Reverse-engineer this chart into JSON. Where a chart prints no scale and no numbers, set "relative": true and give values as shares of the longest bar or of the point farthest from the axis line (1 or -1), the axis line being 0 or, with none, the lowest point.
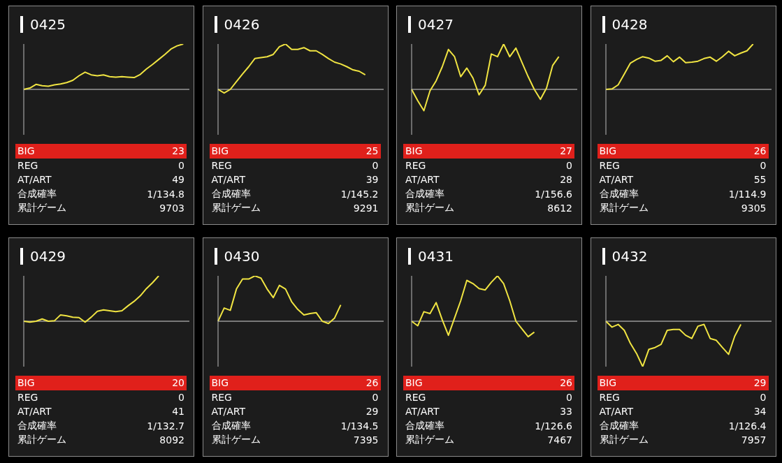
{
  "chart_data": [
    {
      "type": "line",
      "title": "0425",
      "relative": true,
      "tick_labels": false,
      "color": "#f0e442",
      "categories": [
        null,
        null,
        null,
        null,
        null,
        null,
        null,
        null,
        null,
        null,
        null,
        null,
        null,
        null,
        null,
        null,
        null,
        null,
        null,
        null,
        null,
        null,
        null,
        null,
        null,
        null,
        null,
        null
      ],
      "values": [
        0,
        0.03,
        0.11,
        0.08,
        0.07,
        0.1,
        0.12,
        0.15,
        0.2,
        0.3,
        0.38,
        0.32,
        0.3,
        0.32,
        0.28,
        0.27,
        0.28,
        0.27,
        0.26,
        0.33,
        0.45,
        0.55,
        0.66,
        0.77,
        0.89,
        0.96,
        1,
        null
      ],
      "annotations": [
        "BIG",
        "23",
        "REG",
        "0",
        "AT/ART",
        "49",
        "合成確率",
        "1/134.8",
        "累計ゲーム",
        "9703"
      ]
    },
    {
      "type": "line",
      "title": "0426",
      "relative": true,
      "tick_labels": false,
      "color": "#f0e442",
      "categories": [
        null,
        null,
        null,
        null,
        null,
        null,
        null,
        null,
        null,
        null,
        null,
        null,
        null,
        null,
        null,
        null,
        null,
        null,
        null,
        null,
        null,
        null,
        null,
        null,
        null,
        null,
        null,
        null
      ],
      "values": [
        0,
        -0.08,
        0,
        0.17,
        0.34,
        0.5,
        0.68,
        0.7,
        0.72,
        0.77,
        0.94,
        1,
        0.88,
        0.88,
        0.92,
        0.85,
        0.85,
        0.77,
        0.68,
        0.6,
        0.56,
        0.5,
        0.43,
        0.4,
        0.32,
        null,
        null,
        null
      ],
      "annotations": [
        "BIG",
        "25",
        "REG",
        "0",
        "AT/ART",
        "39",
        "合成確率",
        "1/145.2",
        "累計ゲーム",
        "9291"
      ]
    },
    {
      "type": "line",
      "title": "0427",
      "relative": true,
      "tick_labels": false,
      "color": "#f0e442",
      "categories": [
        null,
        null,
        null,
        null,
        null,
        null,
        null,
        null,
        null,
        null,
        null,
        null,
        null,
        null,
        null,
        null,
        null,
        null,
        null,
        null,
        null,
        null,
        null,
        null,
        null,
        null,
        null,
        null
      ],
      "values": [
        0,
        -0.25,
        -0.47,
        -0.03,
        0.19,
        0.5,
        0.88,
        0.72,
        0.28,
        0.47,
        0.25,
        -0.12,
        0.09,
        0.78,
        0.72,
        1,
        0.72,
        0.91,
        0.59,
        0.28,
        0,
        -0.22,
        0.03,
        0.53,
        0.72,
        null,
        null,
        null
      ],
      "annotations": [
        "BIG",
        "27",
        "REG",
        "0",
        "AT/ART",
        "28",
        "合成確率",
        "1/156.6",
        "累計ゲーム",
        "8612"
      ]
    },
    {
      "type": "line",
      "title": "0428",
      "relative": true,
      "tick_labels": false,
      "color": "#f0e442",
      "categories": [
        null,
        null,
        null,
        null,
        null,
        null,
        null,
        null,
        null,
        null,
        null,
        null,
        null,
        null,
        null,
        null,
        null,
        null,
        null,
        null,
        null,
        null,
        null,
        null,
        null,
        null,
        null,
        null
      ],
      "values": [
        0,
        0.01,
        0.1,
        0.34,
        0.58,
        0.66,
        0.72,
        0.69,
        0.62,
        0.64,
        0.74,
        0.61,
        0.71,
        0.59,
        0.6,
        0.62,
        0.68,
        0.71,
        0.62,
        0.72,
        0.84,
        0.74,
        0.8,
        0.85,
        1,
        null,
        null,
        null
      ],
      "annotations": [
        "BIG",
        "26",
        "REG",
        "0",
        "AT/ART",
        "55",
        "合成確率",
        "1/114.9",
        "累計ゲーム",
        "9305"
      ]
    },
    {
      "type": "line",
      "title": "0429",
      "relative": true,
      "tick_labels": false,
      "color": "#f0e442",
      "categories": [
        null,
        null,
        null,
        null,
        null,
        null,
        null,
        null,
        null,
        null,
        null,
        null,
        null,
        null,
        null,
        null,
        null,
        null,
        null,
        null,
        null,
        null,
        null,
        null,
        null,
        null,
        null,
        null
      ],
      "values": [
        0,
        -0.02,
        0,
        0.05,
        0,
        0.01,
        0.14,
        0.12,
        0.09,
        0.08,
        -0.02,
        0.09,
        0.22,
        0.25,
        0.23,
        0.21,
        0.23,
        0.34,
        0.44,
        0.56,
        0.72,
        0.85,
        1,
        null,
        null,
        null,
        null,
        null
      ],
      "annotations": [
        "BIG",
        "20",
        "REG",
        "0",
        "AT/ART",
        "41",
        "合成確率",
        "1/132.7",
        "累計ゲーム",
        "8092"
      ]
    },
    {
      "type": "line",
      "title": "0430",
      "relative": true,
      "tick_labels": false,
      "color": "#f0e442",
      "categories": [
        null,
        null,
        null,
        null,
        null,
        null,
        null,
        null,
        null,
        null,
        null,
        null,
        null,
        null,
        null,
        null,
        null,
        null,
        null,
        null,
        null,
        null,
        null,
        null,
        null,
        null,
        null,
        null
      ],
      "values": [
        0,
        0.29,
        0.24,
        0.71,
        0.93,
        0.93,
        1,
        0.95,
        0.71,
        0.52,
        0.79,
        0.71,
        0.43,
        0.26,
        0.14,
        0.17,
        0.19,
        0,
        -0.05,
        0.07,
        0.36,
        null,
        null,
        null,
        null,
        null,
        null,
        null
      ],
      "annotations": [
        "BIG",
        "26",
        "REG",
        "0",
        "AT/ART",
        "29",
        "合成確率",
        "1/134.5",
        "累計ゲーム",
        "7395"
      ]
    },
    {
      "type": "line",
      "title": "0431",
      "relative": true,
      "tick_labels": false,
      "color": "#f0e442",
      "categories": [
        null,
        null,
        null,
        null,
        null,
        null,
        null,
        null,
        null,
        null,
        null,
        null,
        null,
        null,
        null,
        null,
        null,
        null,
        null,
        null,
        null,
        null,
        null,
        null,
        null,
        null,
        null,
        null
      ],
      "values": [
        0,
        -0.1,
        0.21,
        0.17,
        0.41,
        0.03,
        -0.31,
        0.07,
        0.45,
        0.9,
        0.83,
        0.72,
        0.69,
        0.86,
        1,
        0.83,
        0.45,
        0,
        -0.17,
        -0.34,
        -0.24,
        null,
        null,
        null,
        null,
        null,
        null,
        null
      ],
      "annotations": [
        "BIG",
        "26",
        "REG",
        "0",
        "AT/ART",
        "33",
        "合成確率",
        "1/126.6",
        "累計ゲーム",
        "7467"
      ]
    },
    {
      "type": "line",
      "title": "0432",
      "relative": true,
      "tick_labels": false,
      "color": "#f0e442",
      "categories": [
        null,
        null,
        null,
        null,
        null,
        null,
        null,
        null,
        null,
        null,
        null,
        null,
        null,
        null,
        null,
        null,
        null,
        null,
        null,
        null,
        null,
        null,
        null,
        null,
        null,
        null,
        null,
        null
      ],
      "values": [
        0,
        -0.13,
        -0.07,
        -0.2,
        -0.49,
        -0.71,
        -1,
        -0.62,
        -0.58,
        -0.51,
        -0.2,
        -0.18,
        -0.18,
        -0.31,
        -0.38,
        -0.11,
        -0.07,
        -0.38,
        -0.42,
        -0.58,
        -0.73,
        -0.33,
        -0.07,
        null,
        null,
        null,
        null,
        null
      ],
      "annotations": [
        "BIG",
        "29",
        "REG",
        "0",
        "AT/ART",
        "34",
        "合成確率",
        "1/126.4",
        "累計ゲーム",
        "7957"
      ]
    }
  ]
}
